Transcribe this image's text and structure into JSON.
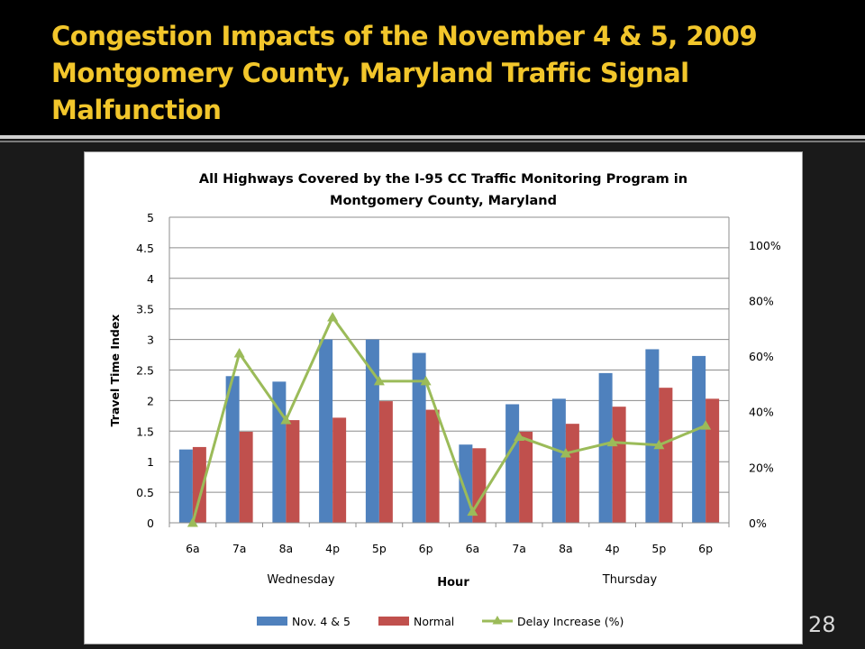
{
  "slide": {
    "title_line1": "Congestion Impacts of the November 4 & 5, 2009",
    "title_line2": "Montgomery County, Maryland Traffic Signal",
    "title_line3": "Malfunction",
    "slide_number": "28"
  },
  "colors": {
    "title_text": "#f2c62b",
    "background": "#1a1a1a",
    "series_nov": "#4f81bd",
    "series_normal": "#c0504d",
    "series_delay": "#9bbb59"
  },
  "chart_data": {
    "type": "bar",
    "title_line1": "All Highways Covered by the I-95 CC Traffic Monitoring Program in",
    "title_line2": "Montgomery County, Maryland",
    "categories": [
      "6a",
      "7a",
      "8a",
      "4p",
      "5p",
      "6p",
      "6a",
      "7a",
      "8a",
      "4p",
      "5p",
      "6p"
    ],
    "day_labels": [
      "Wednesday",
      "Thursday"
    ],
    "xlabel": "Hour",
    "ylabel": "Travel Time Index",
    "ylim": [
      0,
      5
    ],
    "y_ticks": [
      "0",
      "0.5",
      "1",
      "1.5",
      "2",
      "2.5",
      "3",
      "3.5",
      "4",
      "4.5",
      "5"
    ],
    "y2lim": [
      0,
      1.1
    ],
    "y2_ticks": [
      "0%",
      "20%",
      "40%",
      "60%",
      "80%",
      "100%"
    ],
    "grid": true,
    "legend_position": "bottom",
    "series": [
      {
        "name": "Nov. 4 & 5",
        "type": "bar",
        "axis": "left",
        "values": [
          1.2,
          2.4,
          2.31,
          3.0,
          3.0,
          2.78,
          1.28,
          1.94,
          2.03,
          2.45,
          2.84,
          2.73
        ]
      },
      {
        "name": "Normal",
        "type": "bar",
        "axis": "left",
        "values": [
          1.24,
          1.49,
          1.68,
          1.72,
          1.99,
          1.85,
          1.22,
          1.49,
          1.62,
          1.9,
          2.21,
          2.03
        ]
      },
      {
        "name": "Delay Increase (%)",
        "type": "line",
        "axis": "right",
        "values": [
          0.0,
          0.61,
          0.37,
          0.74,
          0.51,
          0.51,
          0.04,
          0.31,
          0.25,
          0.29,
          0.28,
          0.35
        ]
      }
    ]
  }
}
